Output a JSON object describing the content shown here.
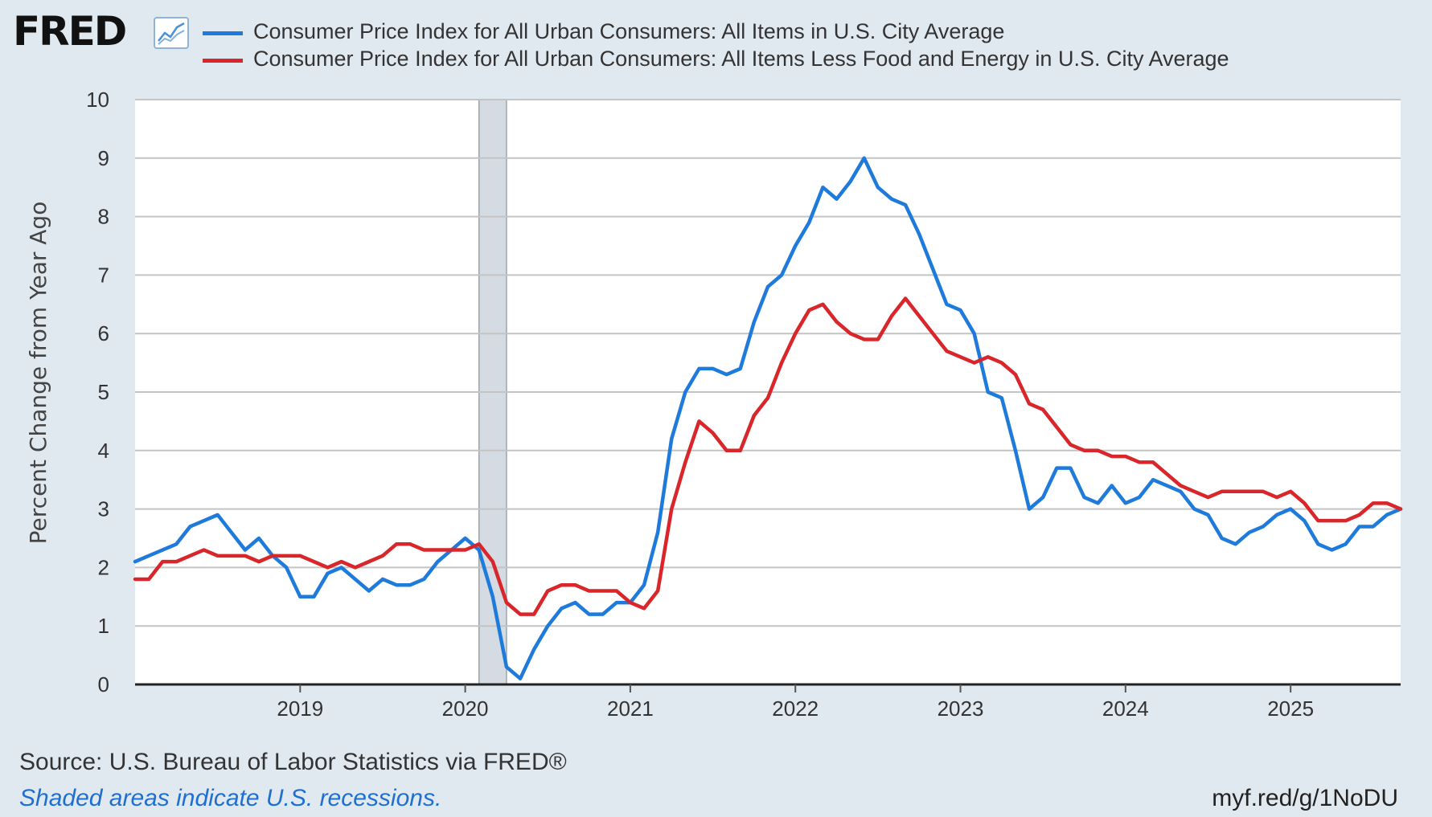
{
  "branding": {
    "logo_text": "FRED",
    "logo_icon": "line-chart-icon"
  },
  "legend": [
    {
      "label": "Consumer Price Index for All Urban Consumers: All Items in U.S. City Average",
      "color": "#1f7bdb"
    },
    {
      "label": "Consumer Price Index for All Urban Consumers: All Items Less Food and Energy in U.S. City Average",
      "color": "#d9262b"
    }
  ],
  "footer": {
    "source": "Source: U.S. Bureau of Labor Statistics via FRED®",
    "note": "Shaded areas indicate U.S. recessions.",
    "link": "myf.red/g/1NoDU"
  },
  "chart_data": {
    "type": "line",
    "ylabel": "Percent Change from Year Ago",
    "xlabel": "",
    "ylim": [
      0,
      10
    ],
    "yticks": [
      0,
      1,
      2,
      3,
      4,
      5,
      6,
      7,
      8,
      9,
      10
    ],
    "xticks": [
      "2019",
      "2020",
      "2021",
      "2022",
      "2023",
      "2024",
      "2025"
    ],
    "x_range": [
      "2018-01",
      "2025-09"
    ],
    "grid": true,
    "legend_position": "top",
    "recession_shading": [
      {
        "start": "2020-02",
        "end": "2020-04"
      }
    ],
    "series": [
      {
        "name": "Consumer Price Index for All Urban Consumers: All Items in U.S. City Average",
        "color": "#1f7bdb",
        "points": [
          [
            "2018-01",
            2.1
          ],
          [
            "2018-02",
            2.2
          ],
          [
            "2018-03",
            2.3
          ],
          [
            "2018-04",
            2.4
          ],
          [
            "2018-05",
            2.7
          ],
          [
            "2018-06",
            2.8
          ],
          [
            "2018-07",
            2.9
          ],
          [
            "2018-08",
            2.6
          ],
          [
            "2018-09",
            2.3
          ],
          [
            "2018-10",
            2.5
          ],
          [
            "2018-11",
            2.2
          ],
          [
            "2018-12",
            2.0
          ],
          [
            "2019-01",
            1.5
          ],
          [
            "2019-02",
            1.5
          ],
          [
            "2019-03",
            1.9
          ],
          [
            "2019-04",
            2.0
          ],
          [
            "2019-05",
            1.8
          ],
          [
            "2019-06",
            1.6
          ],
          [
            "2019-07",
            1.8
          ],
          [
            "2019-08",
            1.7
          ],
          [
            "2019-09",
            1.7
          ],
          [
            "2019-10",
            1.8
          ],
          [
            "2019-11",
            2.1
          ],
          [
            "2019-12",
            2.3
          ],
          [
            "2020-01",
            2.5
          ],
          [
            "2020-02",
            2.3
          ],
          [
            "2020-03",
            1.5
          ],
          [
            "2020-04",
            0.3
          ],
          [
            "2020-05",
            0.1
          ],
          [
            "2020-06",
            0.6
          ],
          [
            "2020-07",
            1.0
          ],
          [
            "2020-08",
            1.3
          ],
          [
            "2020-09",
            1.4
          ],
          [
            "2020-10",
            1.2
          ],
          [
            "2020-11",
            1.2
          ],
          [
            "2020-12",
            1.4
          ],
          [
            "2021-01",
            1.4
          ],
          [
            "2021-02",
            1.7
          ],
          [
            "2021-03",
            2.6
          ],
          [
            "2021-04",
            4.2
          ],
          [
            "2021-05",
            5.0
          ],
          [
            "2021-06",
            5.4
          ],
          [
            "2021-07",
            5.4
          ],
          [
            "2021-08",
            5.3
          ],
          [
            "2021-09",
            5.4
          ],
          [
            "2021-10",
            6.2
          ],
          [
            "2021-11",
            6.8
          ],
          [
            "2021-12",
            7.0
          ],
          [
            "2022-01",
            7.5
          ],
          [
            "2022-02",
            7.9
          ],
          [
            "2022-03",
            8.5
          ],
          [
            "2022-04",
            8.3
          ],
          [
            "2022-05",
            8.6
          ],
          [
            "2022-06",
            9.0
          ],
          [
            "2022-07",
            8.5
          ],
          [
            "2022-08",
            8.3
          ],
          [
            "2022-09",
            8.2
          ],
          [
            "2022-10",
            7.7
          ],
          [
            "2022-11",
            7.1
          ],
          [
            "2022-12",
            6.5
          ],
          [
            "2023-01",
            6.4
          ],
          [
            "2023-02",
            6.0
          ],
          [
            "2023-03",
            5.0
          ],
          [
            "2023-04",
            4.9
          ],
          [
            "2023-05",
            4.0
          ],
          [
            "2023-06",
            3.0
          ],
          [
            "2023-07",
            3.2
          ],
          [
            "2023-08",
            3.7
          ],
          [
            "2023-09",
            3.7
          ],
          [
            "2023-10",
            3.2
          ],
          [
            "2023-11",
            3.1
          ],
          [
            "2023-12",
            3.4
          ],
          [
            "2024-01",
            3.1
          ],
          [
            "2024-02",
            3.2
          ],
          [
            "2024-03",
            3.5
          ],
          [
            "2024-04",
            3.4
          ],
          [
            "2024-05",
            3.3
          ],
          [
            "2024-06",
            3.0
          ],
          [
            "2024-07",
            2.9
          ],
          [
            "2024-08",
            2.5
          ],
          [
            "2024-09",
            2.4
          ],
          [
            "2024-10",
            2.6
          ],
          [
            "2024-11",
            2.7
          ],
          [
            "2024-12",
            2.9
          ],
          [
            "2025-01",
            3.0
          ],
          [
            "2025-02",
            2.8
          ],
          [
            "2025-03",
            2.4
          ],
          [
            "2025-04",
            2.3
          ],
          [
            "2025-05",
            2.4
          ],
          [
            "2025-06",
            2.7
          ],
          [
            "2025-07",
            2.7
          ],
          [
            "2025-08",
            2.9
          ],
          [
            "2025-09",
            3.0
          ]
        ]
      },
      {
        "name": "Consumer Price Index for All Urban Consumers: All Items Less Food and Energy in U.S. City Average",
        "color": "#d9262b",
        "points": [
          [
            "2018-01",
            1.8
          ],
          [
            "2018-02",
            1.8
          ],
          [
            "2018-03",
            2.1
          ],
          [
            "2018-04",
            2.1
          ],
          [
            "2018-05",
            2.2
          ],
          [
            "2018-06",
            2.3
          ],
          [
            "2018-07",
            2.2
          ],
          [
            "2018-08",
            2.2
          ],
          [
            "2018-09",
            2.2
          ],
          [
            "2018-10",
            2.1
          ],
          [
            "2018-11",
            2.2
          ],
          [
            "2018-12",
            2.2
          ],
          [
            "2019-01",
            2.2
          ],
          [
            "2019-02",
            2.1
          ],
          [
            "2019-03",
            2.0
          ],
          [
            "2019-04",
            2.1
          ],
          [
            "2019-05",
            2.0
          ],
          [
            "2019-06",
            2.1
          ],
          [
            "2019-07",
            2.2
          ],
          [
            "2019-08",
            2.4
          ],
          [
            "2019-09",
            2.4
          ],
          [
            "2019-10",
            2.3
          ],
          [
            "2019-11",
            2.3
          ],
          [
            "2019-12",
            2.3
          ],
          [
            "2020-01",
            2.3
          ],
          [
            "2020-02",
            2.4
          ],
          [
            "2020-03",
            2.1
          ],
          [
            "2020-04",
            1.4
          ],
          [
            "2020-05",
            1.2
          ],
          [
            "2020-06",
            1.2
          ],
          [
            "2020-07",
            1.6
          ],
          [
            "2020-08",
            1.7
          ],
          [
            "2020-09",
            1.7
          ],
          [
            "2020-10",
            1.6
          ],
          [
            "2020-11",
            1.6
          ],
          [
            "2020-12",
            1.6
          ],
          [
            "2021-01",
            1.4
          ],
          [
            "2021-02",
            1.3
          ],
          [
            "2021-03",
            1.6
          ],
          [
            "2021-04",
            3.0
          ],
          [
            "2021-05",
            3.8
          ],
          [
            "2021-06",
            4.5
          ],
          [
            "2021-07",
            4.3
          ],
          [
            "2021-08",
            4.0
          ],
          [
            "2021-09",
            4.0
          ],
          [
            "2021-10",
            4.6
          ],
          [
            "2021-11",
            4.9
          ],
          [
            "2021-12",
            5.5
          ],
          [
            "2022-01",
            6.0
          ],
          [
            "2022-02",
            6.4
          ],
          [
            "2022-03",
            6.5
          ],
          [
            "2022-04",
            6.2
          ],
          [
            "2022-05",
            6.0
          ],
          [
            "2022-06",
            5.9
          ],
          [
            "2022-07",
            5.9
          ],
          [
            "2022-08",
            6.3
          ],
          [
            "2022-09",
            6.6
          ],
          [
            "2022-10",
            6.3
          ],
          [
            "2022-11",
            6.0
          ],
          [
            "2022-12",
            5.7
          ],
          [
            "2023-01",
            5.6
          ],
          [
            "2023-02",
            5.5
          ],
          [
            "2023-03",
            5.6
          ],
          [
            "2023-04",
            5.5
          ],
          [
            "2023-05",
            5.3
          ],
          [
            "2023-06",
            4.8
          ],
          [
            "2023-07",
            4.7
          ],
          [
            "2023-08",
            4.4
          ],
          [
            "2023-09",
            4.1
          ],
          [
            "2023-10",
            4.0
          ],
          [
            "2023-11",
            4.0
          ],
          [
            "2023-12",
            3.9
          ],
          [
            "2024-01",
            3.9
          ],
          [
            "2024-02",
            3.8
          ],
          [
            "2024-03",
            3.8
          ],
          [
            "2024-04",
            3.6
          ],
          [
            "2024-05",
            3.4
          ],
          [
            "2024-06",
            3.3
          ],
          [
            "2024-07",
            3.2
          ],
          [
            "2024-08",
            3.3
          ],
          [
            "2024-09",
            3.3
          ],
          [
            "2024-10",
            3.3
          ],
          [
            "2024-11",
            3.3
          ],
          [
            "2024-12",
            3.2
          ],
          [
            "2025-01",
            3.3
          ],
          [
            "2025-02",
            3.1
          ],
          [
            "2025-03",
            2.8
          ],
          [
            "2025-04",
            2.8
          ],
          [
            "2025-05",
            2.8
          ],
          [
            "2025-06",
            2.9
          ],
          [
            "2025-07",
            3.1
          ],
          [
            "2025-08",
            3.1
          ],
          [
            "2025-09",
            3.0
          ]
        ]
      }
    ]
  }
}
